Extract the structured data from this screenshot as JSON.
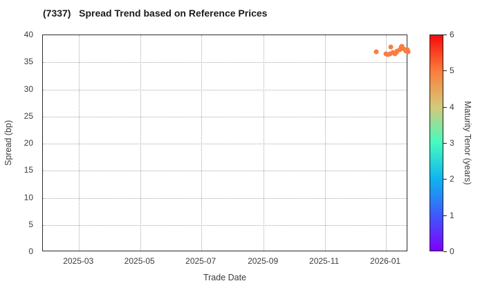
{
  "window": {
    "background": "#ffffff"
  },
  "chart_data": {
    "type": "scatter",
    "title": "(7337)   Spread Trend based on Reference Prices",
    "xlabel": "Trade Date",
    "ylabel": "Spread (bp)",
    "legend_position": "colorbar-right",
    "grid": "dotted",
    "grid_color": "#a6a6a6",
    "ylim": [
      0,
      40
    ],
    "y_ticks": [
      0,
      5,
      10,
      15,
      20,
      25,
      30,
      35,
      40
    ],
    "x_range": [
      "2025-01-24",
      "2026-01-23"
    ],
    "x_ticks": [
      {
        "label": "2025-03",
        "date": "2025-03-01"
      },
      {
        "label": "2025-05",
        "date": "2025-05-01"
      },
      {
        "label": "2025-07",
        "date": "2025-07-01"
      },
      {
        "label": "2025-09",
        "date": "2025-09-01"
      },
      {
        "label": "2025-11",
        "date": "2025-11-01"
      },
      {
        "label": "2026-01",
        "date": "2026-01-01"
      }
    ],
    "point_color": "#fa7d42",
    "points": [
      {
        "date": "2025-12-22",
        "spread_bp": 36.9,
        "tenor_years": 4.8
      },
      {
        "date": "2026-01-01",
        "spread_bp": 36.5,
        "tenor_years": 4.8
      },
      {
        "date": "2026-01-03",
        "spread_bp": 36.4,
        "tenor_years": 4.8
      },
      {
        "date": "2026-01-05",
        "spread_bp": 36.5,
        "tenor_years": 4.8
      },
      {
        "date": "2026-01-06",
        "spread_bp": 37.8,
        "tenor_years": 4.8
      },
      {
        "date": "2026-01-08",
        "spread_bp": 36.8,
        "tenor_years": 4.8
      },
      {
        "date": "2026-01-10",
        "spread_bp": 36.5,
        "tenor_years": 4.8
      },
      {
        "date": "2026-01-11",
        "spread_bp": 36.8,
        "tenor_years": 4.8
      },
      {
        "date": "2026-01-12",
        "spread_bp": 37.1,
        "tenor_years": 4.8
      },
      {
        "date": "2026-01-15",
        "spread_bp": 37.3,
        "tenor_years": 4.8
      },
      {
        "date": "2026-01-16",
        "spread_bp": 37.8,
        "tenor_years": 4.8
      },
      {
        "date": "2026-01-17",
        "spread_bp": 38.0,
        "tenor_years": 4.8
      },
      {
        "date": "2026-01-19",
        "spread_bp": 37.4,
        "tenor_years": 4.8
      },
      {
        "date": "2026-01-21",
        "spread_bp": 37.1,
        "tenor_years": 4.8
      },
      {
        "date": "2026-01-22",
        "spread_bp": 37.3,
        "tenor_years": 4.8
      },
      {
        "date": "2026-01-23",
        "spread_bp": 36.9,
        "tenor_years": 4.8
      }
    ],
    "colorbar": {
      "label": "Maturity Tenor (years)",
      "range": [
        0,
        6
      ],
      "ticks": [
        "0",
        "1",
        "2",
        "3",
        "4",
        "5",
        "6"
      ],
      "gradient": [
        {
          "value": 0,
          "color": "#8000ff"
        },
        {
          "value": 1,
          "color": "#3d5bfb"
        },
        {
          "value": 2,
          "color": "#0fb4f0"
        },
        {
          "value": 3,
          "color": "#45fbc0"
        },
        {
          "value": 4,
          "color": "#d4ca79"
        },
        {
          "value": 5,
          "color": "#fc7d3c"
        },
        {
          "value": 6,
          "color": "#f60b0b"
        }
      ]
    }
  }
}
